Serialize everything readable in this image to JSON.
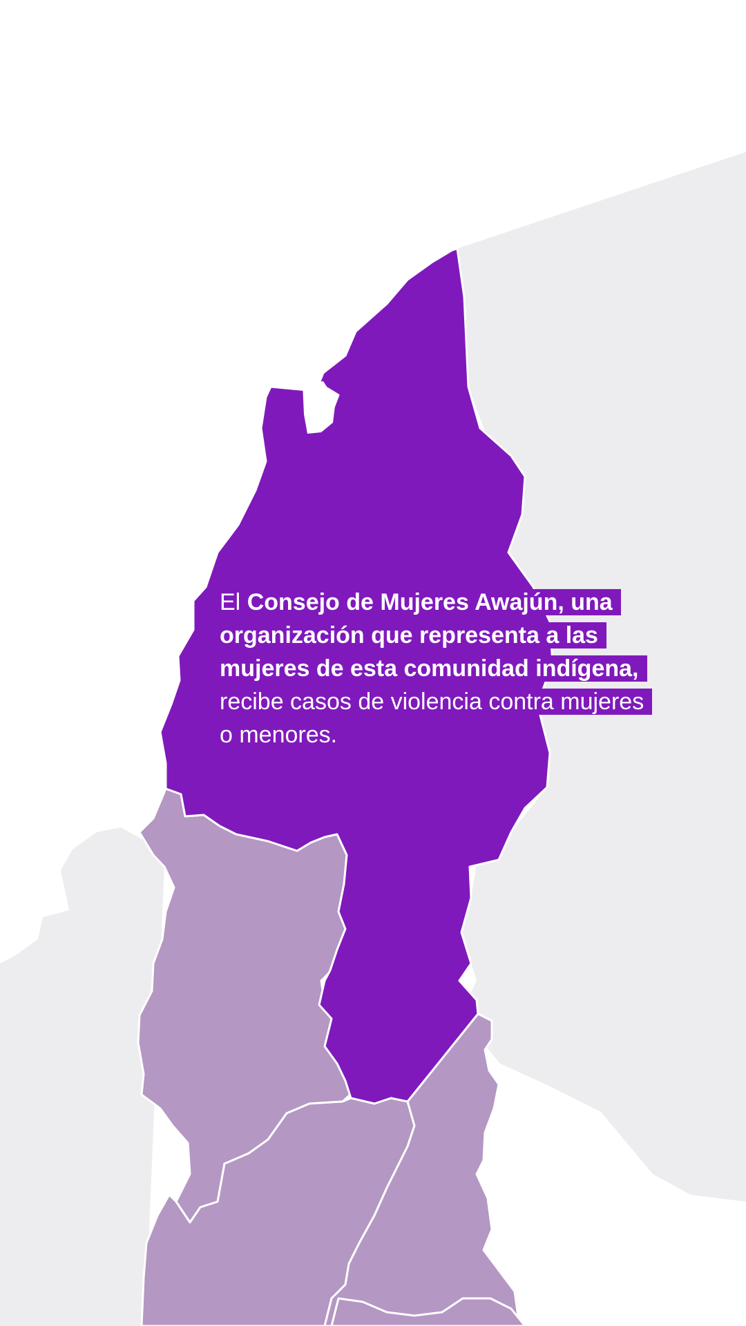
{
  "map": {
    "colors": {
      "background": "#ffffff",
      "outside_land": "#edecee",
      "highlight_region": "#8019bc",
      "neighbor_regions": "#b497c3",
      "borders": "#ffffff"
    },
    "highlighted_region": {
      "label": ""
    }
  },
  "caption": {
    "lead": "El ",
    "bold": "Consejo de Mujeres Awajún, una organización que representa a las mujeres de esta comunidad indígena,",
    "rest": " recibe casos de violencia contra mujeres o menores."
  }
}
